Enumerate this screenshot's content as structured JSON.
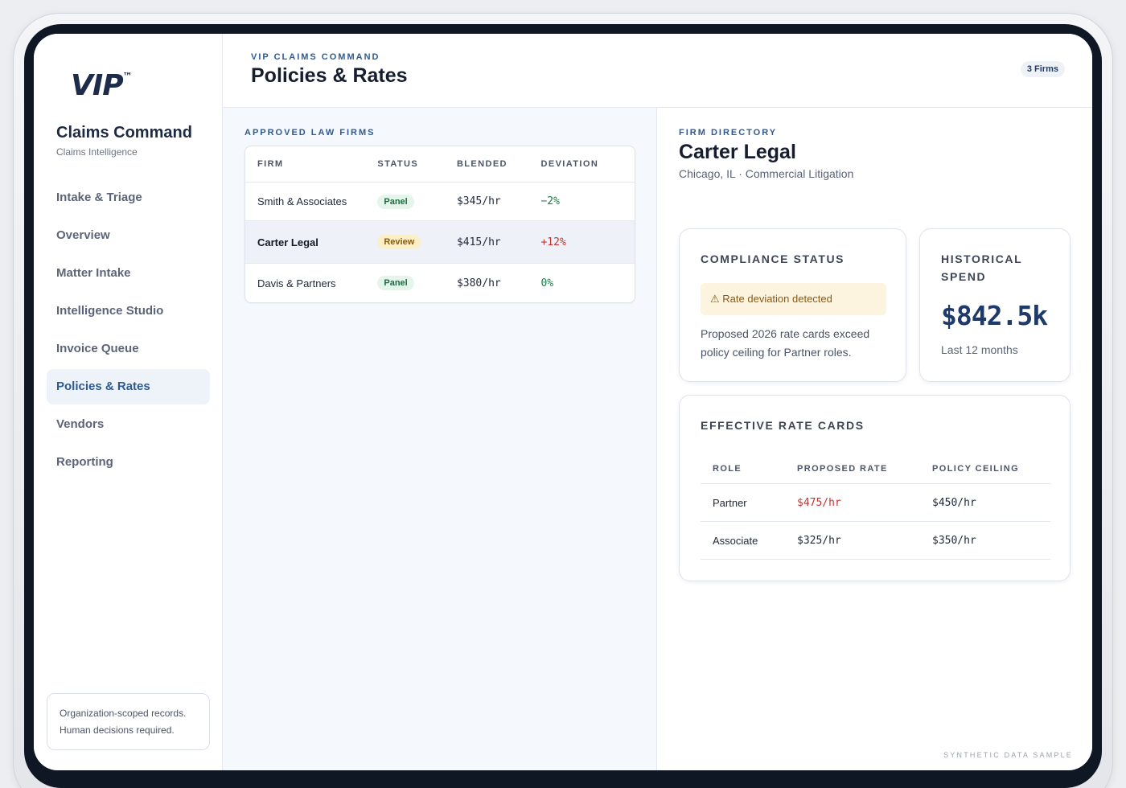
{
  "brand": {
    "logo": "VIP",
    "logo_mark": "™",
    "app_title": "Claims Command",
    "app_subtitle": "Claims Intelligence"
  },
  "nav": {
    "items": [
      {
        "label": "Intake & Triage",
        "active": false
      },
      {
        "label": "Overview",
        "active": false
      },
      {
        "label": "Matter Intake",
        "active": false
      },
      {
        "label": "Intelligence Studio",
        "active": false
      },
      {
        "label": "Invoice Queue",
        "active": false
      },
      {
        "label": "Policies & Rates",
        "active": true
      },
      {
        "label": "Vendors",
        "active": false
      },
      {
        "label": "Reporting",
        "active": false
      }
    ]
  },
  "sidebar_note": {
    "line1": "Organization-scoped records.",
    "line2": "Human decisions required."
  },
  "header": {
    "eyebrow": "VIP CLAIMS COMMAND",
    "title": "Policies & Rates",
    "badge": "3 Firms"
  },
  "firms": {
    "section_title": "APPROVED LAW FIRMS",
    "columns": [
      "FIRM",
      "STATUS",
      "BLENDED",
      "DEVIATION"
    ],
    "rows": [
      {
        "firm": "Smith & Associates",
        "status": "Panel",
        "blended": "$345/hr",
        "deviation": "−2%"
      },
      {
        "firm": "Carter Legal",
        "status": "Review",
        "blended": "$415/hr",
        "deviation": "+12%"
      },
      {
        "firm": "Davis & Partners",
        "status": "Panel",
        "blended": "$380/hr",
        "deviation": "0%"
      }
    ]
  },
  "detail": {
    "eyebrow": "FIRM DIRECTORY",
    "firm_name": "Carter Legal",
    "firm_meta": "Chicago, IL · Commercial Litigation",
    "compliance": {
      "title": "COMPLIANCE STATUS",
      "warning_icon": "⚠",
      "warning": "Rate deviation detected",
      "text": "Proposed 2026 rate cards exceed policy ceiling for Partner roles."
    },
    "spend": {
      "title": "HISTORICAL SPEND",
      "value": "$842.5k",
      "caption": "Last 12 months"
    },
    "rates": {
      "title": "EFFECTIVE RATE CARDS",
      "columns": [
        "ROLE",
        "PROPOSED RATE",
        "POLICY CEILING"
      ],
      "rows": [
        {
          "role": "Partner",
          "proposed": "$475/hr",
          "ceiling": "$450/hr"
        },
        {
          "role": "Associate",
          "proposed": "$325/hr",
          "ceiling": "$350/hr"
        }
      ]
    }
  },
  "watermark": "SYNTHETIC DATA SAMPLE",
  "colors": {
    "accent": "#2e5b92",
    "brand_dark": "#1e2b4a",
    "warning_bg": "#fdf4df",
    "danger": "#c0342f",
    "success": "#1e7a48"
  }
}
